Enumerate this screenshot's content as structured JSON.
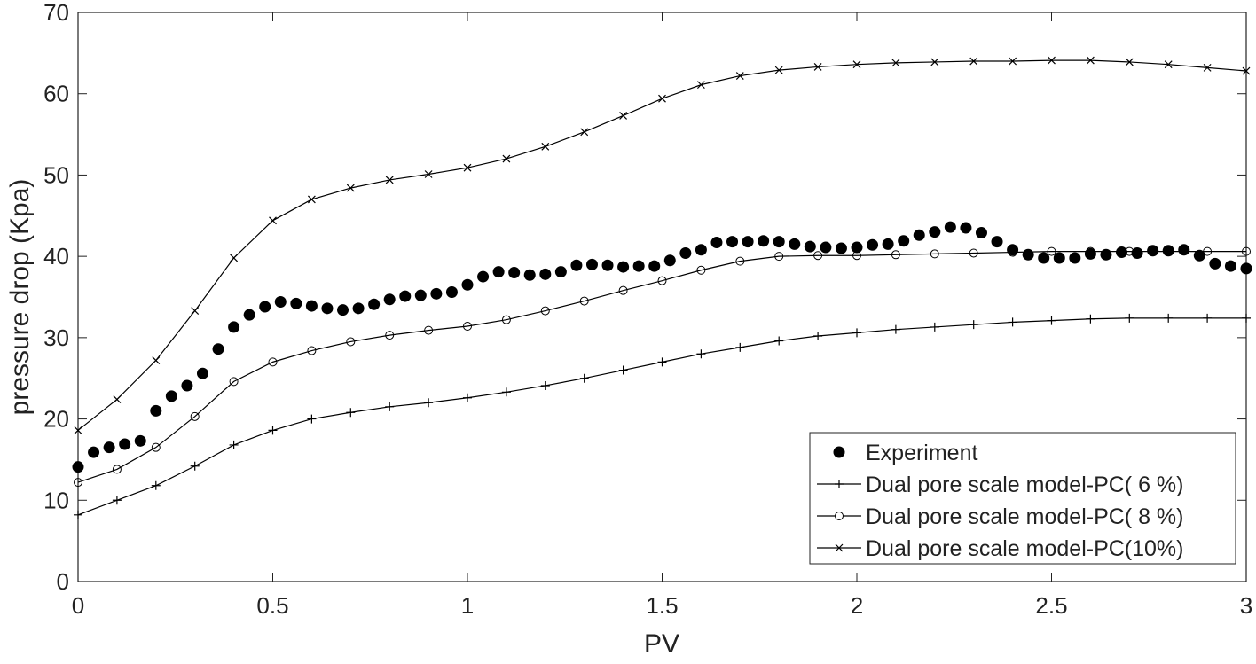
{
  "chart_data": {
    "type": "line",
    "x_label": "PV",
    "y_label": "pressure drop (Kpa)",
    "xlim": [
      0,
      3
    ],
    "xticks": [
      0,
      0.5,
      1,
      1.5,
      2,
      2.5,
      3
    ],
    "ylim": [
      0,
      70
    ],
    "yticks": [
      0,
      10,
      20,
      30,
      40,
      50,
      60,
      70
    ],
    "legend": "lower right",
    "series": [
      {
        "name": "Experiment",
        "color": "#000000",
        "marker": "dot",
        "line": false,
        "x": [
          0,
          0.04,
          0.08,
          0.12,
          0.16,
          0.2,
          0.24,
          0.28,
          0.32,
          0.36,
          0.4,
          0.44,
          0.48,
          0.52,
          0.56,
          0.6,
          0.64,
          0.68,
          0.72,
          0.76,
          0.8,
          0.84,
          0.88,
          0.92,
          0.96,
          1.0,
          1.04,
          1.08,
          1.12,
          1.16,
          1.2,
          1.24,
          1.28,
          1.32,
          1.36,
          1.4,
          1.44,
          1.48,
          1.52,
          1.56,
          1.6,
          1.64,
          1.68,
          1.72,
          1.76,
          1.8,
          1.84,
          1.88,
          1.92,
          1.96,
          2.0,
          2.04,
          2.08,
          2.12,
          2.16,
          2.2,
          2.24,
          2.28,
          2.32,
          2.36,
          2.4,
          2.44,
          2.48,
          2.52,
          2.56,
          2.6,
          2.64,
          2.68,
          2.72,
          2.76,
          2.8,
          2.84,
          2.88,
          2.92,
          2.96,
          3.0
        ],
        "values": [
          14.1,
          15.9,
          16.5,
          16.9,
          17.3,
          21,
          22.8,
          24.1,
          25.6,
          28.6,
          31.3,
          32.8,
          33.8,
          34.4,
          34.2,
          33.9,
          33.6,
          33.4,
          33.6,
          34.1,
          34.7,
          35.1,
          35.2,
          35.4,
          35.6,
          36.5,
          37.5,
          38.1,
          38,
          37.7,
          37.8,
          38.1,
          38.9,
          39,
          38.9,
          38.7,
          38.8,
          38.8,
          39.5,
          40.4,
          40.8,
          41.7,
          41.8,
          41.8,
          41.9,
          41.8,
          41.5,
          41.2,
          41.1,
          41,
          41.1,
          41.4,
          41.5,
          41.9,
          42.6,
          43,
          43.6,
          43.5,
          42.9,
          41.8,
          40.8,
          40.2,
          39.8,
          39.8,
          39.8,
          40.3,
          40.2,
          40.5,
          40.4,
          40.7,
          40.7,
          40.8,
          40.1,
          39.1,
          38.8,
          38.5
        ]
      },
      {
        "name": "Dual pore scale model-PC( 6 %)",
        "color": "#000000",
        "marker": "plus",
        "line": true,
        "x": [
          0,
          0.1,
          0.2,
          0.3,
          0.4,
          0.5,
          0.6,
          0.7,
          0.8,
          0.9,
          1.0,
          1.1,
          1.2,
          1.3,
          1.4,
          1.5,
          1.6,
          1.7,
          1.8,
          1.9,
          2.0,
          2.1,
          2.2,
          2.3,
          2.4,
          2.5,
          2.6,
          2.7,
          2.8,
          2.9,
          3.0
        ],
        "values": [
          8.2,
          10,
          11.8,
          14.2,
          16.8,
          18.6,
          20,
          20.8,
          21.5,
          22,
          22.6,
          23.3,
          24.1,
          25,
          26,
          27,
          28,
          28.8,
          29.6,
          30.2,
          30.6,
          31,
          31.3,
          31.6,
          31.9,
          32.1,
          32.3,
          32.4,
          32.4,
          32.4,
          32.4
        ]
      },
      {
        "name": "Dual pore scale model-PC( 8 %)",
        "color": "#000000",
        "marker": "circle",
        "line": true,
        "x": [
          0,
          0.1,
          0.2,
          0.3,
          0.4,
          0.5,
          0.6,
          0.7,
          0.8,
          0.9,
          1.0,
          1.1,
          1.2,
          1.3,
          1.4,
          1.5,
          1.6,
          1.7,
          1.8,
          1.9,
          2.0,
          2.1,
          2.2,
          2.3,
          2.4,
          2.5,
          2.6,
          2.7,
          2.8,
          2.9,
          3.0
        ],
        "values": [
          12.2,
          13.8,
          16.5,
          20.3,
          24.6,
          27,
          28.4,
          29.5,
          30.3,
          30.9,
          31.4,
          32.2,
          33.3,
          34.5,
          35.8,
          37,
          38.3,
          39.4,
          40,
          40.1,
          40.1,
          40.2,
          40.3,
          40.4,
          40.5,
          40.6,
          40.6,
          40.6,
          40.6,
          40.6,
          40.6
        ]
      },
      {
        "name": "Dual pore scale model-PC(10%)",
        "color": "#000000",
        "marker": "cross",
        "line": true,
        "x": [
          0,
          0.1,
          0.2,
          0.3,
          0.4,
          0.5,
          0.6,
          0.7,
          0.8,
          0.9,
          1.0,
          1.1,
          1.2,
          1.3,
          1.4,
          1.5,
          1.6,
          1.7,
          1.8,
          1.9,
          2.0,
          2.1,
          2.2,
          2.3,
          2.4,
          2.5,
          2.6,
          2.7,
          2.8,
          2.9,
          3.0
        ],
        "values": [
          18.6,
          22.4,
          27.2,
          33.3,
          39.8,
          44.4,
          47,
          48.4,
          49.4,
          50.1,
          50.9,
          52,
          53.5,
          55.3,
          57.3,
          59.4,
          61.1,
          62.2,
          62.9,
          63.3,
          63.6,
          63.8,
          63.9,
          64,
          64,
          64.1,
          64.1,
          63.9,
          63.6,
          63.2,
          62.8
        ]
      }
    ]
  }
}
